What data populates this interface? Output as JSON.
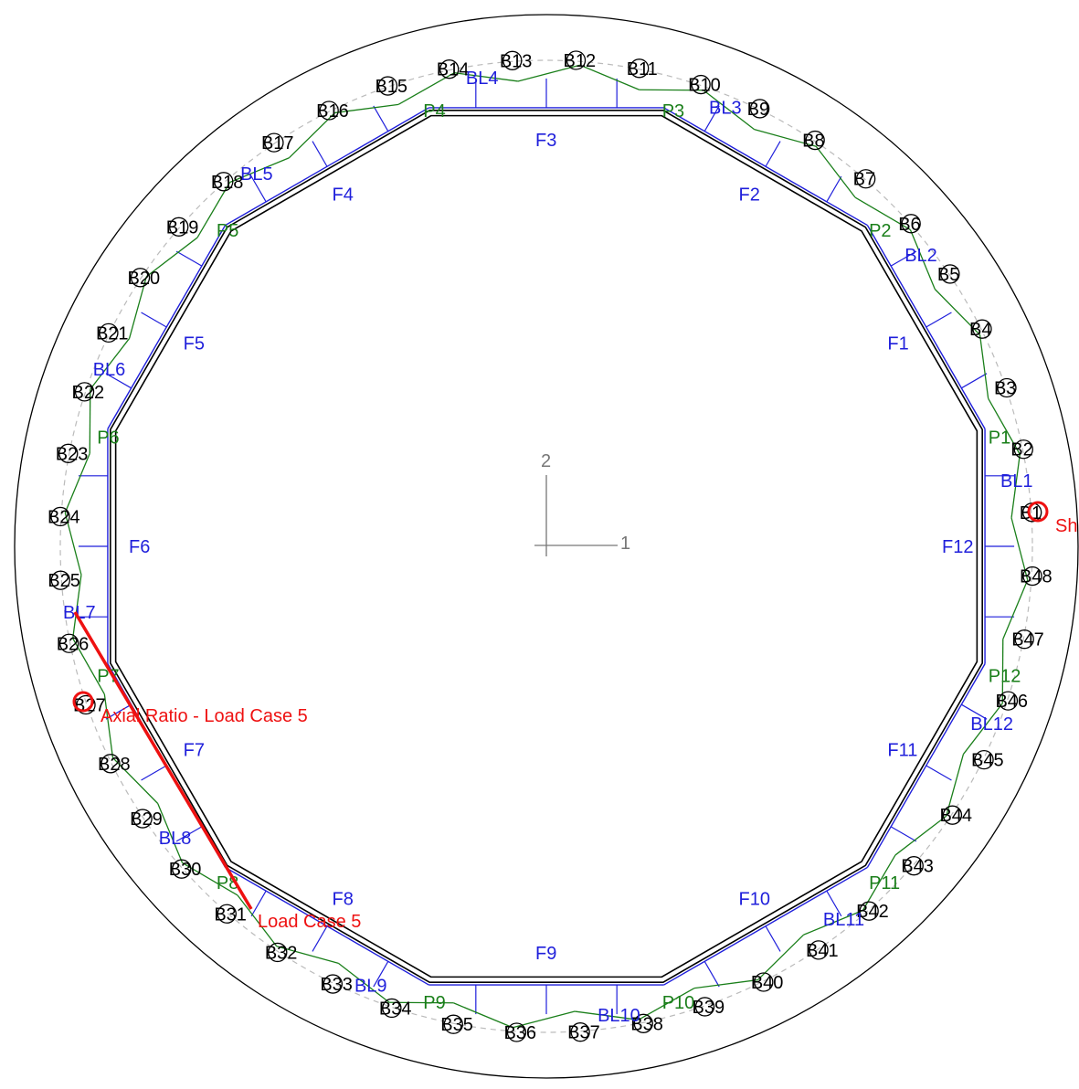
{
  "diagram": {
    "colors": {
      "outline": "#000000",
      "face": "#1f1fdb",
      "plate": "#1a7f1a",
      "highlight": "#ee1111",
      "guide": "#bbbbbb",
      "axis": "#777777"
    },
    "axes": {
      "x_label": "1",
      "y_label": "2"
    },
    "bars": [
      {
        "label": "B1"
      },
      {
        "label": "B2"
      },
      {
        "label": "B3"
      },
      {
        "label": "B4"
      },
      {
        "label": "B5"
      },
      {
        "label": "B6"
      },
      {
        "label": "B7"
      },
      {
        "label": "B8"
      },
      {
        "label": "B9"
      },
      {
        "label": "B10"
      },
      {
        "label": "B11"
      },
      {
        "label": "B12"
      },
      {
        "label": "B13"
      },
      {
        "label": "B14"
      },
      {
        "label": "B15"
      },
      {
        "label": "B16"
      },
      {
        "label": "B17"
      },
      {
        "label": "B18"
      },
      {
        "label": "B19"
      },
      {
        "label": "B20"
      },
      {
        "label": "B21"
      },
      {
        "label": "B22"
      },
      {
        "label": "B23"
      },
      {
        "label": "B24"
      },
      {
        "label": "B25"
      },
      {
        "label": "B26"
      },
      {
        "label": "B27"
      },
      {
        "label": "B28"
      },
      {
        "label": "B29"
      },
      {
        "label": "B30"
      },
      {
        "label": "B31"
      },
      {
        "label": "B32"
      },
      {
        "label": "B33"
      },
      {
        "label": "B34"
      },
      {
        "label": "B35"
      },
      {
        "label": "B36"
      },
      {
        "label": "B37"
      },
      {
        "label": "B38"
      },
      {
        "label": "B39"
      },
      {
        "label": "B40"
      },
      {
        "label": "B41"
      },
      {
        "label": "B42"
      },
      {
        "label": "B43"
      },
      {
        "label": "B44"
      },
      {
        "label": "B45"
      },
      {
        "label": "B46"
      },
      {
        "label": "B47"
      },
      {
        "label": "B48"
      }
    ],
    "faces": [
      "F1",
      "F2",
      "F3",
      "F4",
      "F5",
      "F6",
      "F7",
      "F8",
      "F9",
      "F10",
      "F11",
      "F12"
    ],
    "plates": [
      "P1",
      "P2",
      "P3",
      "P4",
      "P5",
      "P6",
      "P7",
      "P8",
      "P9",
      "P10",
      "P11",
      "P12"
    ],
    "bend_lines": [
      "BL1",
      "BL2",
      "BL3",
      "BL4",
      "BL5",
      "BL6",
      "BL7",
      "BL8",
      "BL9",
      "BL10",
      "BL11",
      "BL12"
    ],
    "annotations": {
      "axial_ratio": "Axial Ratio - Load Case 5",
      "load_case": "Load Case 5",
      "shear_cut": "Sh"
    }
  }
}
